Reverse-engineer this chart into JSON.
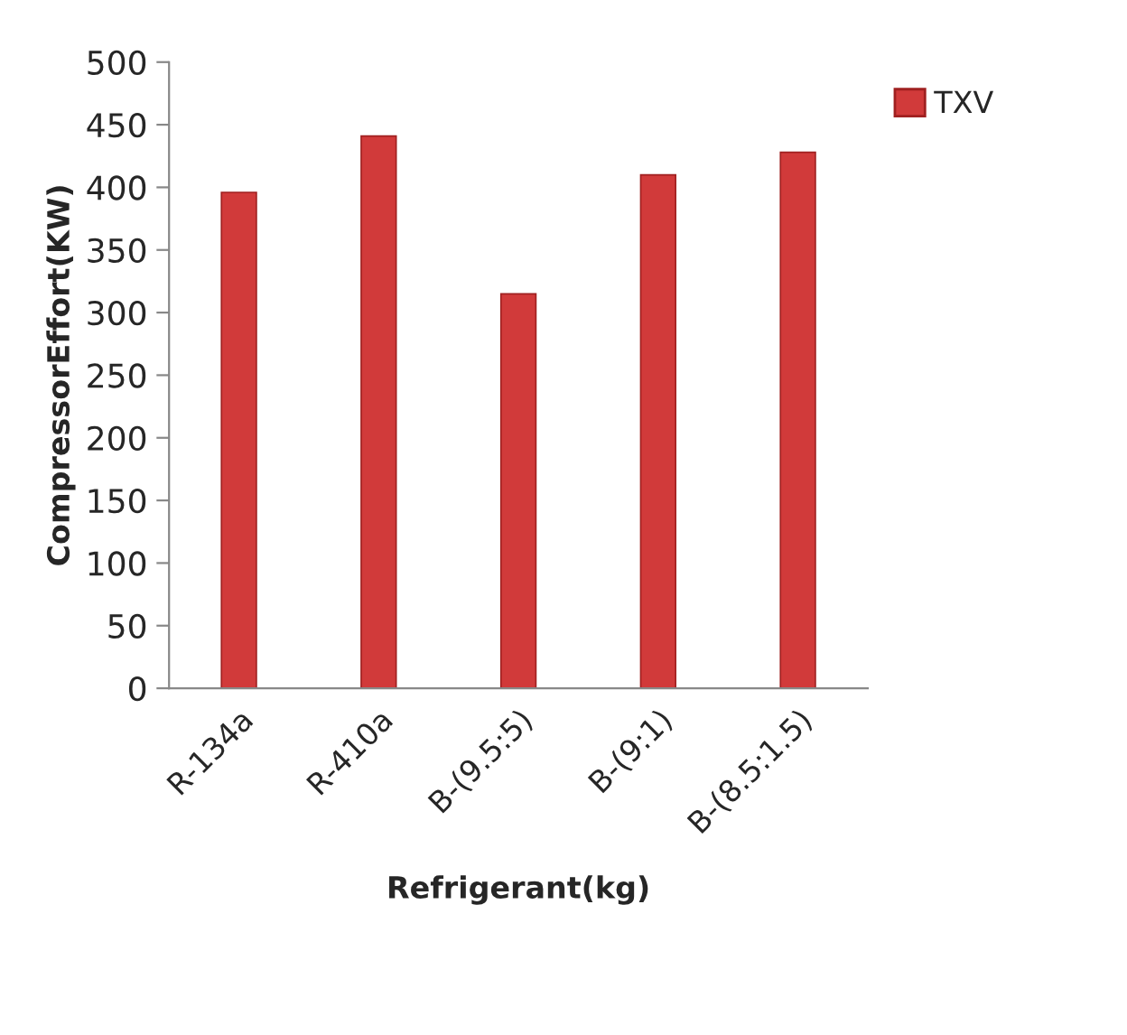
{
  "chart_data": {
    "type": "bar",
    "xlabel": "Refrigerant(kg)",
    "ylabel": "CompressorEffort(KW)",
    "categories": [
      "R-134a",
      "R-410a",
      "B-(9.5:5)",
      "B-(9:1)",
      "B-(8.5:1.5)"
    ],
    "series": [
      {
        "name": "TXV",
        "color": "#d13a3a",
        "values": [
          396,
          441,
          315,
          410,
          428
        ]
      }
    ],
    "ylim": [
      0,
      500
    ],
    "yticks": [
      0,
      50,
      100,
      150,
      200,
      250,
      300,
      350,
      400,
      450,
      500
    ],
    "grid": false,
    "legend": "top right"
  }
}
